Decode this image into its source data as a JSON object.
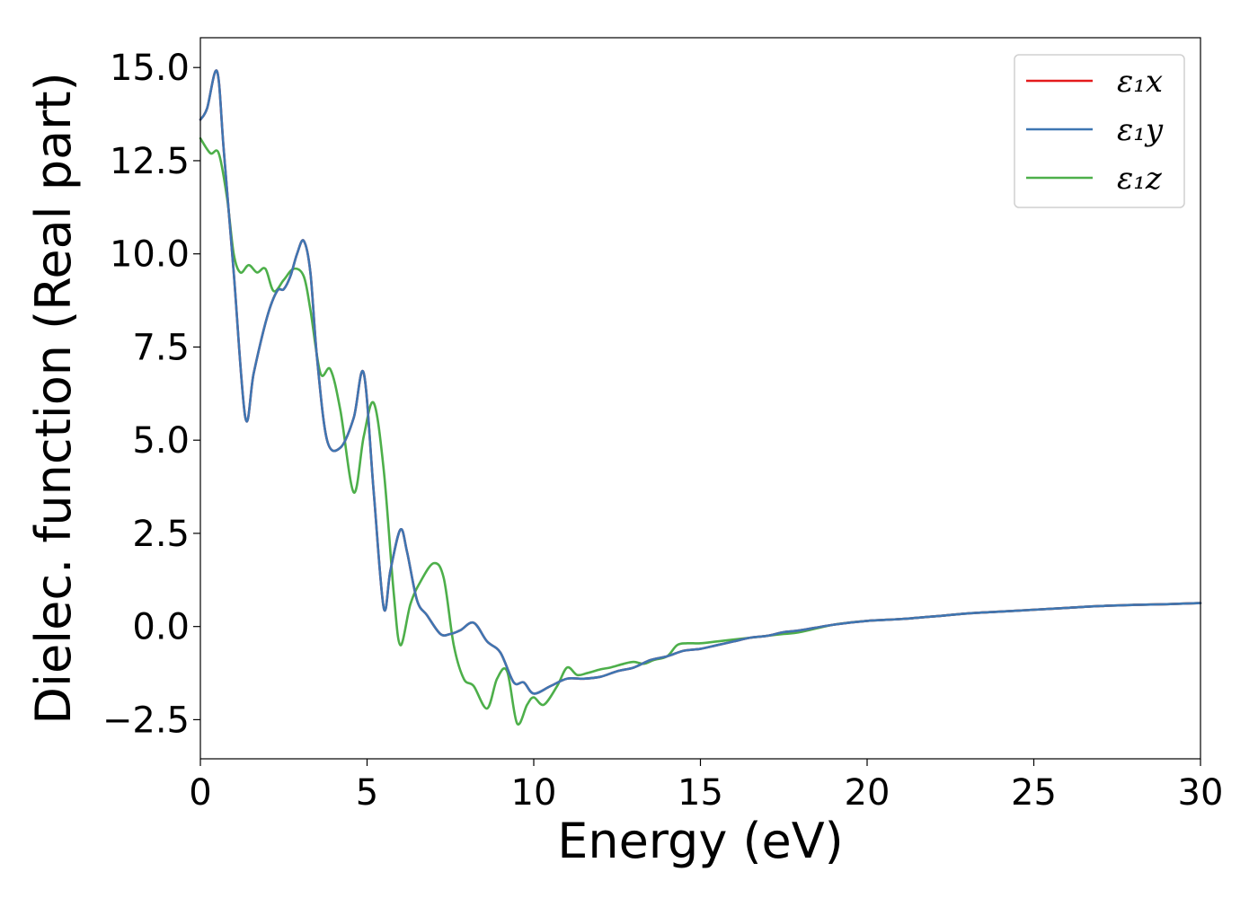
{
  "chart_data": {
    "type": "line",
    "xlabel": "Energy (eV)",
    "ylabel": "Dielec. function (Real part)",
    "xlim": [
      0,
      30
    ],
    "ylim": [
      -3.55,
      15.8
    ],
    "xticks": [
      0,
      5,
      10,
      15,
      20,
      25,
      30
    ],
    "xtick_labels": [
      "0",
      "5",
      "10",
      "15",
      "20",
      "25",
      "30"
    ],
    "yticks": [
      -2.5,
      0.0,
      2.5,
      5.0,
      7.5,
      10.0,
      12.5,
      15.0
    ],
    "ytick_labels": [
      "−2.5",
      "0.0",
      "2.5",
      "5.0",
      "7.5",
      "10.0",
      "12.5",
      "15.0"
    ],
    "grid": false,
    "legend_position": "top-right",
    "series": [
      {
        "name": "ε₁x",
        "color": "#e41a1c",
        "x": [
          0,
          0.2,
          0.5,
          0.7,
          1.0,
          1.35,
          1.6,
          2.0,
          2.3,
          2.5,
          2.7,
          2.9,
          3.1,
          3.3,
          3.5,
          3.8,
          4.2,
          4.6,
          4.9,
          5.2,
          5.5,
          5.7,
          6.0,
          6.2,
          6.5,
          6.8,
          7.2,
          7.5,
          7.8,
          8.2,
          8.6,
          9.0,
          9.4,
          9.7,
          10.0,
          10.5,
          11.0,
          11.5,
          12.0,
          12.5,
          13.0,
          13.5,
          14.0,
          14.5,
          15.0,
          15.5,
          16.0,
          16.5,
          17.0,
          17.5,
          18.0,
          19.0,
          20.0,
          21.0,
          22.0,
          23.0,
          24.0,
          25.0,
          26.0,
          27.0,
          28.0,
          29.0,
          30.0
        ],
        "values": [
          13.6,
          13.9,
          14.9,
          12.8,
          9.5,
          5.6,
          6.8,
          8.3,
          9.0,
          9.05,
          9.4,
          10.0,
          10.35,
          9.5,
          7.2,
          5.0,
          4.8,
          5.6,
          6.8,
          3.6,
          0.5,
          1.5,
          2.6,
          2.0,
          0.7,
          0.3,
          -0.2,
          -0.2,
          -0.1,
          0.1,
          -0.4,
          -0.7,
          -1.5,
          -1.5,
          -1.8,
          -1.6,
          -1.4,
          -1.4,
          -1.35,
          -1.2,
          -1.1,
          -0.9,
          -0.8,
          -0.65,
          -0.6,
          -0.5,
          -0.4,
          -0.3,
          -0.25,
          -0.15,
          -0.1,
          0.05,
          0.15,
          0.2,
          0.27,
          0.35,
          0.4,
          0.45,
          0.5,
          0.55,
          0.58,
          0.6,
          0.63
        ]
      },
      {
        "name": "ε₁y",
        "color": "#3e76b2",
        "x": [
          0,
          0.2,
          0.5,
          0.7,
          1.0,
          1.35,
          1.6,
          2.0,
          2.3,
          2.5,
          2.7,
          2.9,
          3.1,
          3.3,
          3.5,
          3.8,
          4.2,
          4.6,
          4.9,
          5.2,
          5.5,
          5.7,
          6.0,
          6.2,
          6.5,
          6.8,
          7.2,
          7.5,
          7.8,
          8.2,
          8.6,
          9.0,
          9.4,
          9.7,
          10.0,
          10.5,
          11.0,
          11.5,
          12.0,
          12.5,
          13.0,
          13.5,
          14.0,
          14.5,
          15.0,
          15.5,
          16.0,
          16.5,
          17.0,
          17.5,
          18.0,
          19.0,
          20.0,
          21.0,
          22.0,
          23.0,
          24.0,
          25.0,
          26.0,
          27.0,
          28.0,
          29.0,
          30.0
        ],
        "values": [
          13.6,
          13.9,
          14.9,
          12.8,
          9.5,
          5.6,
          6.8,
          8.3,
          9.0,
          9.05,
          9.4,
          10.0,
          10.35,
          9.5,
          7.2,
          5.0,
          4.8,
          5.6,
          6.8,
          3.6,
          0.5,
          1.5,
          2.6,
          2.0,
          0.7,
          0.3,
          -0.2,
          -0.2,
          -0.1,
          0.1,
          -0.4,
          -0.7,
          -1.5,
          -1.5,
          -1.8,
          -1.6,
          -1.4,
          -1.4,
          -1.35,
          -1.2,
          -1.1,
          -0.9,
          -0.8,
          -0.65,
          -0.6,
          -0.5,
          -0.4,
          -0.3,
          -0.25,
          -0.15,
          -0.1,
          0.05,
          0.15,
          0.2,
          0.27,
          0.35,
          0.4,
          0.45,
          0.5,
          0.55,
          0.58,
          0.6,
          0.63
        ]
      },
      {
        "name": "ε₁z",
        "color": "#4daf4a",
        "x": [
          0,
          0.3,
          0.55,
          0.8,
          1.0,
          1.2,
          1.45,
          1.7,
          1.95,
          2.2,
          2.5,
          2.8,
          3.1,
          3.3,
          3.6,
          3.9,
          4.2,
          4.6,
          4.9,
          5.2,
          5.5,
          5.8,
          6.0,
          6.3,
          6.6,
          7.0,
          7.3,
          7.6,
          7.9,
          8.2,
          8.6,
          8.9,
          9.2,
          9.5,
          9.8,
          10.0,
          10.3,
          10.7,
          11.0,
          11.3,
          11.6,
          12.0,
          12.3,
          12.7,
          13.0,
          13.3,
          13.6,
          14.0,
          14.3,
          14.6,
          15.0,
          15.5,
          16.0,
          16.5,
          17.0,
          17.5,
          18.0,
          19.0,
          20.0,
          21.0,
          22.0,
          23.0,
          24.0,
          25.0,
          26.0,
          27.0,
          28.0,
          29.0,
          30.0
        ],
        "values": [
          13.1,
          12.7,
          12.7,
          11.5,
          10.0,
          9.5,
          9.7,
          9.5,
          9.6,
          9.0,
          9.3,
          9.6,
          9.4,
          8.5,
          6.8,
          6.9,
          5.8,
          3.6,
          5.1,
          6.0,
          4.2,
          0.9,
          -0.5,
          0.6,
          1.2,
          1.7,
          1.3,
          -0.5,
          -1.4,
          -1.6,
          -2.2,
          -1.4,
          -1.2,
          -2.6,
          -2.1,
          -1.9,
          -2.1,
          -1.6,
          -1.1,
          -1.3,
          -1.25,
          -1.15,
          -1.1,
          -1.0,
          -0.95,
          -1.0,
          -0.9,
          -0.8,
          -0.5,
          -0.45,
          -0.45,
          -0.4,
          -0.35,
          -0.3,
          -0.25,
          -0.2,
          -0.15,
          0.05,
          0.15,
          0.2,
          0.27,
          0.35,
          0.4,
          0.45,
          0.5,
          0.55,
          0.58,
          0.6,
          0.63
        ]
      }
    ]
  }
}
